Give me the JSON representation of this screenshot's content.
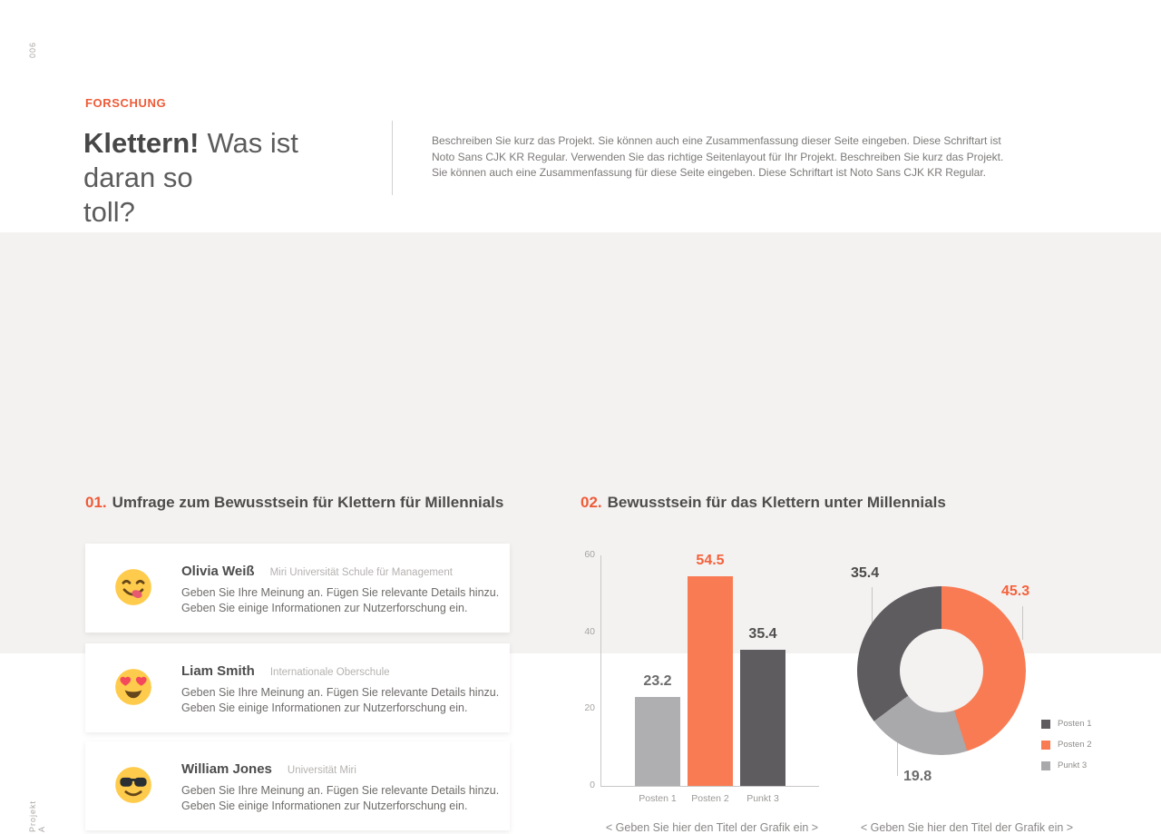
{
  "page": {
    "number": "006",
    "project_label": "Projekt A"
  },
  "colors": {
    "accent": "#EE5B38",
    "orange_fill": "#F87B53",
    "dark_fill": "#5E5C5F",
    "gray_fill": "#AFAEB0",
    "donut_gray": "#A9A8AB",
    "background": "#F4F2F1"
  },
  "header": {
    "eyebrow": "FORSCHUNG",
    "title_bold": "Klettern!",
    "title_rest_line1": "Was ist",
    "title_line2": "daran so",
    "title_line3": "toll?",
    "description": "Beschreiben Sie kurz das Projekt. Sie können auch eine Zusammenfassung dieser Seite eingeben. Diese Schriftart ist Noto Sans CJK KR Regular. Verwenden Sie das richtige Seitenlayout für Ihr Projekt. Beschreiben Sie kurz das Projekt. Sie können auch eine Zusammenfassung für diese Seite eingeben. Diese Schriftart ist Noto Sans CJK KR Regular."
  },
  "section1": {
    "number": "01.",
    "title": "Umfrage zum Bewusstsein für Klettern für Millennials",
    "cards": [
      {
        "emoji": "yum-face",
        "name": "Olivia Weiß",
        "affiliation": "Miri Universität Schule für Management",
        "body_line1": "Geben Sie Ihre Meinung an. Fügen Sie relevante Details hinzu.",
        "body_line2": "Geben Sie einige Informationen zur Nutzerforschung ein."
      },
      {
        "emoji": "heart-eyes-face",
        "name": "Liam Smith",
        "affiliation": "Internationale Oberschule",
        "body_line1": "Geben Sie Ihre Meinung an. Fügen Sie relevante Details hinzu.",
        "body_line2": "Geben Sie einige Informationen zur Nutzerforschung ein."
      },
      {
        "emoji": "sunglasses-face",
        "name": "William Jones",
        "affiliation": "Universität Miri",
        "body_line1": "Geben Sie Ihre Meinung an. Fügen Sie relevante Details hinzu.",
        "body_line2": "Geben Sie einige Informationen zur Nutzerforschung ein."
      }
    ]
  },
  "section2": {
    "number": "02.",
    "title": "Bewusstsein für das Klettern unter Millennials"
  },
  "chart_data": [
    {
      "type": "bar",
      "title": "",
      "categories": [
        "Posten 1",
        "Posten 2",
        "Punkt 3"
      ],
      "values": [
        23.2,
        54.5,
        35.4
      ],
      "bar_colors": [
        "#AFAEB0",
        "#F87B53",
        "#5E5C5F"
      ],
      "value_label_colors": [
        "#6B6B6B",
        "#F4613B",
        "#4F4F4F"
      ],
      "xlabel": "",
      "ylabel": "",
      "ylim": [
        0,
        60
      ],
      "yticks": [
        0,
        20,
        40,
        60
      ],
      "grid": false,
      "caption": "< Geben Sie hier den Titel der Grafik ein >"
    },
    {
      "type": "donut",
      "title": "",
      "slices": [
        {
          "label": "Posten 2",
          "value": 45.3,
          "color": "#F87B53"
        },
        {
          "label": "Punkt 3",
          "value": 19.8,
          "color": "#A9A8AB"
        },
        {
          "label": "Posten 1",
          "value": 35.4,
          "color": "#5E5C5F"
        }
      ],
      "start_angle_deg": 0,
      "legend_position": "right-bottom",
      "legend": [
        {
          "label": "Posten 1",
          "color": "#5E5C5F"
        },
        {
          "label": "Posten 2",
          "color": "#F87B53"
        },
        {
          "label": "Punkt 3",
          "color": "#A9A8AB"
        }
      ],
      "callouts": [
        {
          "text": "35.4",
          "color": "#4A4A4A"
        },
        {
          "text": "45.3",
          "color": "#F4613B"
        },
        {
          "text": "19.8",
          "color": "#6B6B6B"
        }
      ],
      "caption": "< Geben Sie hier den Titel der Grafik ein >"
    }
  ]
}
